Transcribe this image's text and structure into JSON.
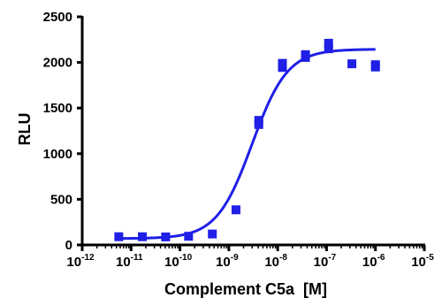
{
  "chart_data": {
    "type": "scatter",
    "title": "",
    "xlabel": "Complement C5a  [M]",
    "ylabel": "RLU",
    "x_scale": "log10",
    "xlim": [
      1e-12,
      1e-05
    ],
    "ylim": [
      0,
      2500
    ],
    "x_ticks": [
      {
        "base": "10",
        "exp": "-12",
        "value": 1e-12
      },
      {
        "base": "10",
        "exp": "-11",
        "value": 1e-11
      },
      {
        "base": "10",
        "exp": "-10",
        "value": 1e-10
      },
      {
        "base": "10",
        "exp": "-9",
        "value": 1e-09
      },
      {
        "base": "10",
        "exp": "-8",
        "value": 1e-08
      },
      {
        "base": "10",
        "exp": "-7",
        "value": 1e-07
      },
      {
        "base": "10",
        "exp": "-6",
        "value": 1e-06
      },
      {
        "base": "10",
        "exp": "-5",
        "value": 1e-05
      }
    ],
    "y_ticks": [
      "0",
      "500",
      "1000",
      "1500",
      "2000",
      "2500"
    ],
    "grid": false,
    "legend": "none",
    "marker_color": "#1f1fe6",
    "curve_color": "#1f1fe6",
    "points": [
      {
        "x": 5.6e-12,
        "y": 90
      },
      {
        "x": 1.7e-11,
        "y": 90
      },
      {
        "x": 5.1e-11,
        "y": 88
      },
      {
        "x": 1.5e-10,
        "y": 95
      },
      {
        "x": 4.6e-10,
        "y": 120
      },
      {
        "x": 1.4e-09,
        "y": 385
      },
      {
        "x": 4.1e-09,
        "y": 1320
      },
      {
        "x": 4.1e-09,
        "y": 1365
      },
      {
        "x": 1.25e-08,
        "y": 1945
      },
      {
        "x": 1.25e-08,
        "y": 1990
      },
      {
        "x": 3.7e-08,
        "y": 2055
      },
      {
        "x": 3.7e-08,
        "y": 2085
      },
      {
        "x": 1.1e-07,
        "y": 2150
      },
      {
        "x": 1.1e-07,
        "y": 2210
      },
      {
        "x": 3.3e-07,
        "y": 1985
      },
      {
        "x": 1e-06,
        "y": 1950
      },
      {
        "x": 1e-06,
        "y": 1975
      }
    ],
    "fit_curve": {
      "model": "4PL",
      "bottom": 70,
      "top": 2145,
      "ec50": 3e-09,
      "hill_slope": 1.2,
      "x_range": [
        5e-12,
        1e-06
      ]
    }
  }
}
